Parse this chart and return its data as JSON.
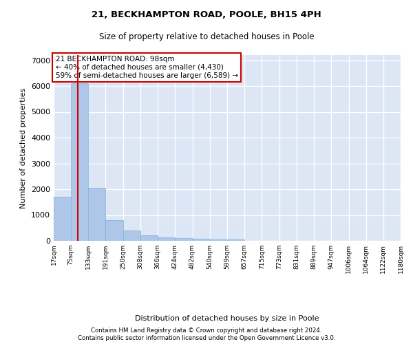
{
  "title1": "21, BECKHAMPTON ROAD, POOLE, BH15 4PH",
  "title2": "Size of property relative to detached houses in Poole",
  "xlabel": "Distribution of detached houses by size in Poole",
  "ylabel": "Number of detached properties",
  "footnote1": "Contains HM Land Registry data © Crown copyright and database right 2024.",
  "footnote2": "Contains public sector information licensed under the Open Government Licence v3.0.",
  "annotation_line1": "21 BECKHAMPTON ROAD: 98sqm",
  "annotation_line2": "← 40% of detached houses are smaller (4,430)",
  "annotation_line3": "59% of semi-detached houses are larger (6,589) →",
  "bar_color": "#aec6e8",
  "bar_edge_color": "#7fb3d9",
  "red_line_color": "#cc0000",
  "annotation_box_edge": "#cc0000",
  "plot_bg_color": "#dce6f5",
  "grid_color": "#ffffff",
  "bin_labels": [
    "17sqm",
    "75sqm",
    "133sqm",
    "191sqm",
    "250sqm",
    "308sqm",
    "366sqm",
    "424sqm",
    "482sqm",
    "540sqm",
    "599sqm",
    "657sqm",
    "715sqm",
    "773sqm",
    "831sqm",
    "889sqm",
    "947sqm",
    "1006sqm",
    "1064sqm",
    "1122sqm",
    "1180sqm"
  ],
  "bin_edges": [
    17,
    75,
    133,
    191,
    250,
    308,
    366,
    424,
    482,
    540,
    599,
    657,
    715,
    773,
    831,
    889,
    947,
    1006,
    1064,
    1122,
    1180
  ],
  "bar_heights": [
    1700,
    6100,
    2050,
    810,
    390,
    210,
    130,
    100,
    80,
    60,
    55,
    0,
    0,
    0,
    0,
    0,
    0,
    0,
    0,
    0
  ],
  "ylim": [
    0,
    7200
  ],
  "yticks": [
    0,
    1000,
    2000,
    3000,
    4000,
    5000,
    6000,
    7000
  ],
  "red_line_x": 98
}
